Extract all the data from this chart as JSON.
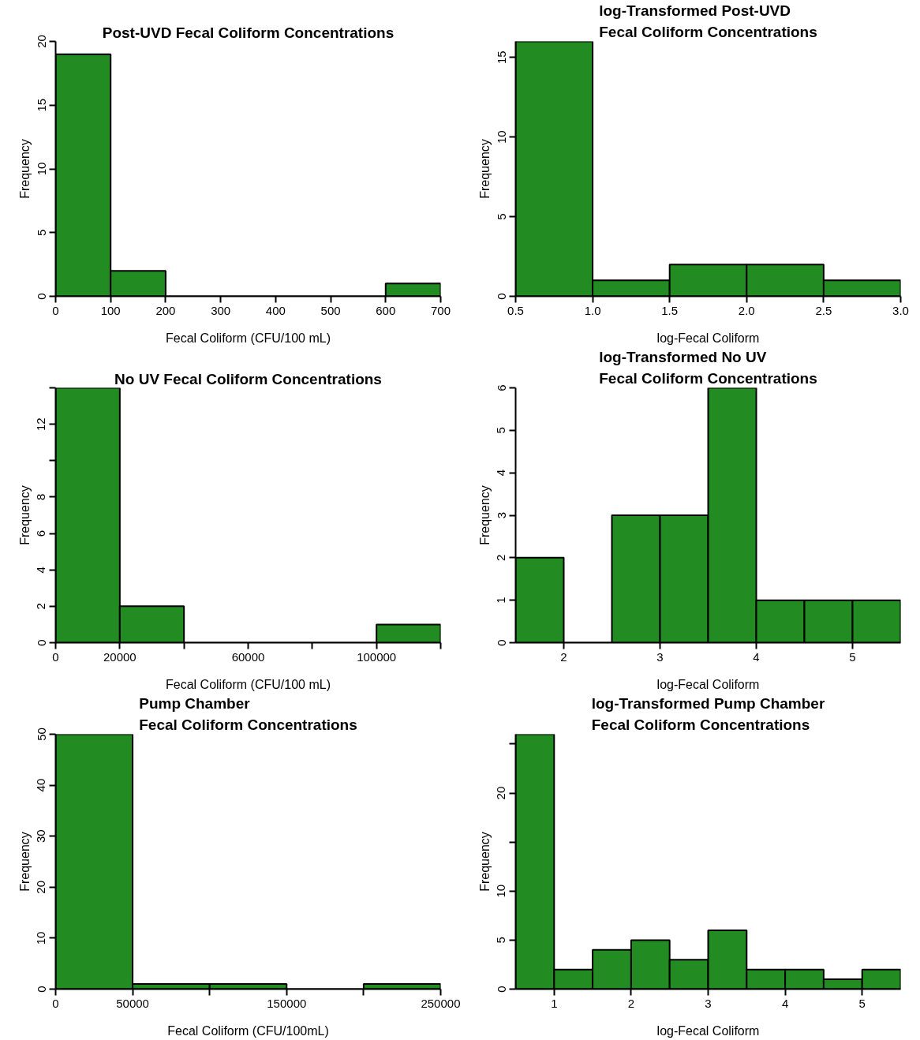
{
  "chart_data": [
    {
      "type": "histogram",
      "title": "Post-UVD Fecal Coliform Concentrations",
      "xlabel": "Fecal Coliform (CFU/100 mL)",
      "ylabel": "Frequency",
      "color": "#228b22",
      "bins": [
        0,
        100,
        200,
        300,
        400,
        500,
        600,
        700
      ],
      "values": [
        19,
        2,
        0,
        0,
        0,
        0,
        1
      ],
      "xlim": [
        0,
        700
      ],
      "ylim": [
        0,
        20
      ],
      "xticks": [
        0,
        100,
        200,
        300,
        400,
        500,
        600,
        700
      ],
      "yticks": [
        0,
        5,
        10,
        15,
        20
      ],
      "grid": false
    },
    {
      "type": "histogram",
      "title": "log-Transformed Post-UVD\nFecal Coliform Concentrations",
      "xlabel": "log-Fecal Coliform",
      "ylabel": "Frequency",
      "color": "#228b22",
      "bins": [
        0.5,
        1.0,
        1.5,
        2.0,
        2.5,
        3.0
      ],
      "values": [
        16,
        1,
        2,
        2,
        1
      ],
      "xlim": [
        0.5,
        3.0
      ],
      "ylim": [
        0,
        16
      ],
      "xticks": [
        0.5,
        {
          "value": 1,
          "label": "1.0"
        },
        1.5,
        {
          "value": 2,
          "label": "2.0"
        },
        2.5,
        {
          "value": 3,
          "label": "3.0"
        }
      ],
      "yticks": [
        0,
        5,
        10,
        15
      ],
      "grid": false
    },
    {
      "type": "histogram",
      "title": "No UV Fecal Coliform Concentrations",
      "xlabel": "Fecal Coliform (CFU/100 mL)",
      "ylabel": "Frequency",
      "color": "#228b22",
      "bins": [
        0,
        20000,
        40000,
        60000,
        80000,
        100000,
        120000
      ],
      "values": [
        14,
        2,
        0,
        0,
        0,
        1
      ],
      "xlim": [
        0,
        120000
      ],
      "ylim": [
        0,
        14
      ],
      "xticks": [
        0,
        20000,
        {
          "value": 40000,
          "label": null
        },
        60000,
        {
          "value": 80000,
          "label": null
        },
        100000,
        {
          "value": 120000,
          "label": null
        }
      ],
      "yticks": [
        0,
        2,
        4,
        6,
        8,
        {
          "value": 10,
          "label": null
        },
        12,
        {
          "value": 14,
          "label": null
        }
      ],
      "grid": false
    },
    {
      "type": "histogram",
      "title": "log-Transformed No UV\nFecal Coliform Concentrations",
      "xlabel": "log-Fecal Coliform",
      "ylabel": "Frequency",
      "color": "#228b22",
      "bins": [
        1.5,
        2.0,
        2.5,
        3.0,
        3.5,
        4.0,
        4.5,
        5.0,
        5.5
      ],
      "values": [
        2,
        0,
        3,
        3,
        6,
        1,
        1,
        1
      ],
      "xlim": [
        1.5,
        5.5
      ],
      "ylim": [
        0,
        6
      ],
      "xticks": [
        2,
        3,
        4,
        5
      ],
      "yticks": [
        0,
        1,
        2,
        3,
        4,
        5,
        6
      ],
      "grid": false
    },
    {
      "type": "histogram",
      "title": "Pump Chamber\nFecal Coliform Concentrations",
      "xlabel": "Fecal Coliform (CFU/100mL)",
      "ylabel": "Frequency",
      "color": "#228b22",
      "bins": [
        0,
        50000,
        100000,
        150000,
        200000,
        250000
      ],
      "values": [
        50,
        1,
        1,
        0,
        1
      ],
      "xlim": [
        0,
        250000
      ],
      "ylim": [
        0,
        50
      ],
      "xticks": [
        0,
        50000,
        {
          "value": 100000,
          "label": null
        },
        150000,
        {
          "value": 200000,
          "label": null
        },
        250000
      ],
      "yticks": [
        0,
        10,
        20,
        30,
        40,
        50
      ],
      "grid": false
    },
    {
      "type": "histogram",
      "title": "log-Transformed Pump Chamber\nFecal Coliform Concentrations",
      "xlabel": "log-Fecal Coliform",
      "ylabel": "Frequency",
      "color": "#228b22",
      "bins": [
        0.5,
        1.0,
        1.5,
        2.0,
        2.5,
        3.0,
        3.5,
        4.0,
        4.5,
        5.0,
        5.5
      ],
      "values": [
        26,
        2,
        4,
        5,
        3,
        6,
        2,
        2,
        1,
        2
      ],
      "xlim": [
        0.5,
        5.5
      ],
      "ylim": [
        0,
        26
      ],
      "xticks": [
        1,
        2,
        3,
        4,
        5
      ],
      "yticks": [
        0,
        5,
        10,
        {
          "value": 15,
          "label": null
        },
        20,
        {
          "value": 25,
          "label": null
        }
      ],
      "grid": false
    }
  ]
}
